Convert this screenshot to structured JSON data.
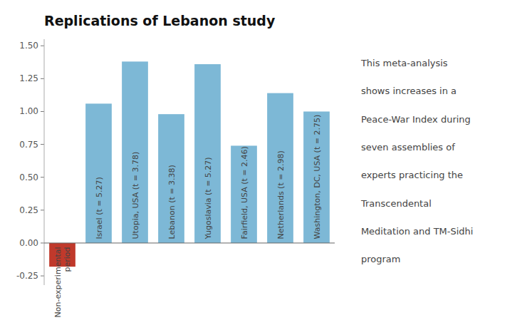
{
  "chart_data": {
    "type": "bar",
    "title": "Replications of Lebanon study",
    "categories": [
      "Non-experimental\nperiod",
      "Israel (t = 5.27)",
      "Utopia, USA (t = 3.78)",
      "Lebanon (t = 3.38)",
      "Yugoslavia (t = 5.27)",
      "Fairfield, USA (t = 2.46)",
      "Netherlands (t = 2.98)",
      "Washington, DC, USA (t = 2.75)"
    ],
    "values": [
      -0.18,
      1.06,
      1.38,
      0.98,
      1.36,
      0.74,
      1.14,
      1.0
    ],
    "colors": [
      "#c0392b",
      "#7db8d6",
      "#7db8d6",
      "#7db8d6",
      "#7db8d6",
      "#7db8d6",
      "#7db8d6",
      "#7db8d6"
    ],
    "ylim": [
      -0.32,
      1.55
    ],
    "yticks": [
      -0.25,
      {
        "value": 0.0,
        "label": "0.00"
      },
      0.25,
      {
        "value": 0.5,
        "label": "0.50"
      },
      0.75,
      {
        "value": 1.0,
        "label": "1.00"
      },
      1.25,
      {
        "value": 1.5,
        "label": "1.50"
      }
    ],
    "grid": false,
    "tick_labels": "y",
    "annotations": [
      "This meta-analysis",
      "shows increases in a",
      "Peace-War Index during",
      "seven assemblies of",
      "experts practicing the",
      "Transcendental",
      "Meditation and TM-Sidhi",
      "program"
    ]
  }
}
